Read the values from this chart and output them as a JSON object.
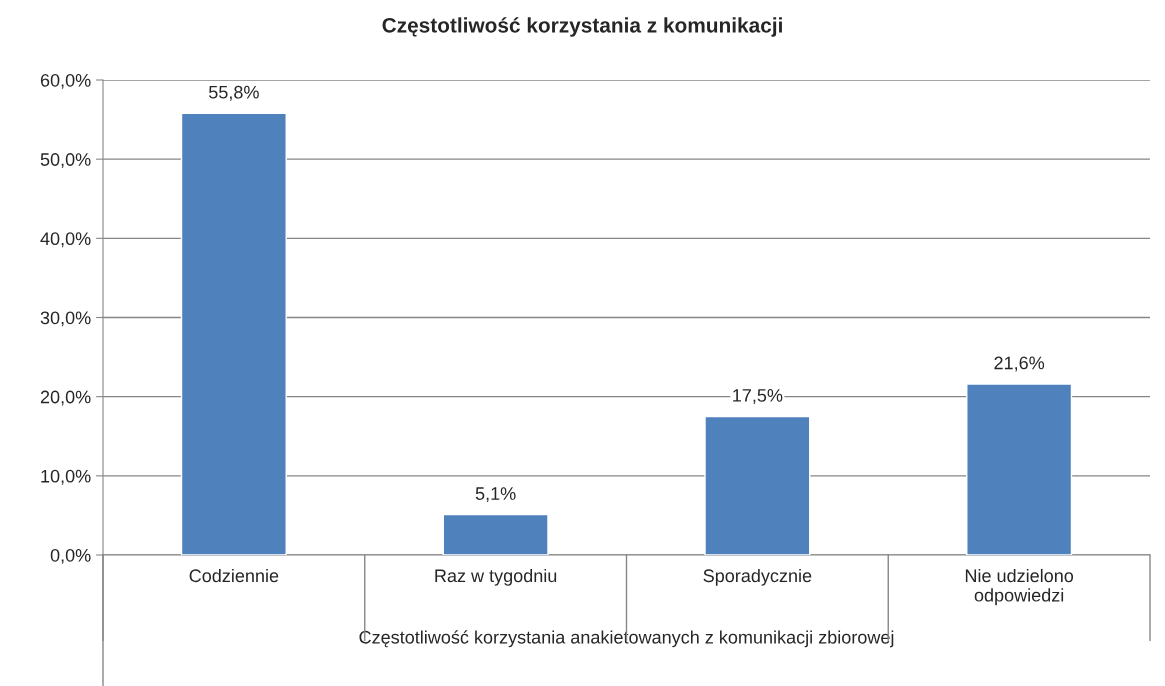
{
  "chart_data": {
    "type": "bar",
    "title": "Częstotliwość korzystania z komunikacji",
    "xlabel": "Częstotliwość korzystania anakietowanych z komunikacji zbiorowej",
    "categories": [
      "Codziennie",
      "Raz w tygodniu",
      "Sporadycznie",
      "Nie udzielono\nodpowiedzi"
    ],
    "values": [
      55.8,
      5.1,
      17.5,
      21.6
    ],
    "value_labels": [
      "55,8%",
      "5,1%",
      "17,5%",
      "21,6%"
    ],
    "color": "#4f81bd",
    "ylim": [
      0,
      60
    ],
    "yticks": [
      {
        "value": 0,
        "label": "0,0%"
      },
      {
        "value": 10,
        "label": "10,0%"
      },
      {
        "value": 20,
        "label": "20,0%"
      },
      {
        "value": 30,
        "label": "30,0%"
      },
      {
        "value": 40,
        "label": "40,0%"
      },
      {
        "value": 50,
        "label": "50,0%"
      },
      {
        "value": 60,
        "label": "60,0%"
      }
    ],
    "grid": "y"
  }
}
